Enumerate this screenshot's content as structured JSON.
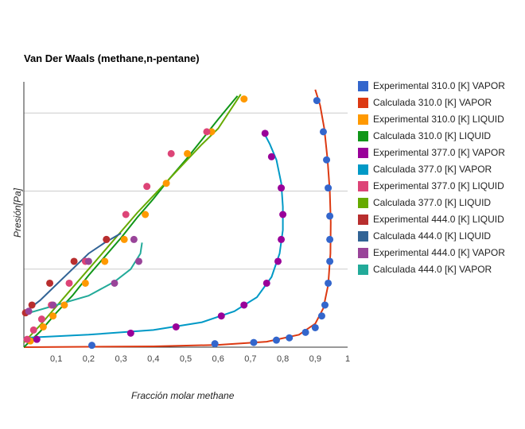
{
  "chart_data": {
    "type": "scatter",
    "title": "Van Der Waals (methane,n-pentane)",
    "xlabel": "Fracción molar methane",
    "ylabel": "Presión[Pa]",
    "xlim": [
      0,
      1
    ],
    "ylim": [
      0,
      17
    ],
    "x_ticks": [
      {
        "v": 0.1,
        "label": "0,1"
      },
      {
        "v": 0.2,
        "label": "0,2"
      },
      {
        "v": 0.3,
        "label": "0,3"
      },
      {
        "v": 0.4,
        "label": "0,4"
      },
      {
        "v": 0.5,
        "label": "0,5"
      },
      {
        "v": 0.6,
        "label": "0,6"
      },
      {
        "v": 0.7,
        "label": "0,7"
      },
      {
        "v": 0.8,
        "label": "0,8"
      },
      {
        "v": 0.9,
        "label": "0,9"
      },
      {
        "v": 1.0,
        "label": "1"
      }
    ],
    "y_grid": [
      5,
      10,
      15
    ],
    "legend_position": "right",
    "series": [
      {
        "name": "Experimental 310.0 [K] VAPOR",
        "kind": "points",
        "color": "#3366cc",
        "points": [
          [
            0.21,
            0.12
          ],
          [
            0.59,
            0.22
          ],
          [
            0.71,
            0.3
          ],
          [
            0.78,
            0.45
          ],
          [
            0.82,
            0.6
          ],
          [
            0.87,
            0.95
          ],
          [
            0.9,
            1.25
          ],
          [
            0.92,
            2.0
          ],
          [
            0.93,
            2.7
          ],
          [
            0.94,
            4.1
          ],
          [
            0.945,
            5.5
          ],
          [
            0.945,
            6.9
          ],
          [
            0.945,
            8.4
          ],
          [
            0.94,
            10.2
          ],
          [
            0.935,
            12.0
          ],
          [
            0.925,
            13.8
          ],
          [
            0.905,
            15.8
          ]
        ]
      },
      {
        "name": "Calculada 310.0 [K] VAPOR",
        "kind": "line",
        "color": "#dc3912",
        "points": [
          [
            0.0,
            0.0
          ],
          [
            0.4,
            0.05
          ],
          [
            0.6,
            0.15
          ],
          [
            0.75,
            0.35
          ],
          [
            0.85,
            0.8
          ],
          [
            0.9,
            1.5
          ],
          [
            0.925,
            2.5
          ],
          [
            0.94,
            4.0
          ],
          [
            0.947,
            6.0
          ],
          [
            0.948,
            8.0
          ],
          [
            0.945,
            10.0
          ],
          [
            0.938,
            12.0
          ],
          [
            0.928,
            14.0
          ],
          [
            0.915,
            15.5
          ],
          [
            0.9,
            16.5
          ]
        ]
      },
      {
        "name": "Experimental 310.0 [K]  LIQUID",
        "kind": "points",
        "color": "#ff9900",
        "points": [
          [
            0.02,
            0.4
          ],
          [
            0.06,
            1.3
          ],
          [
            0.09,
            2.0
          ],
          [
            0.125,
            2.7
          ],
          [
            0.19,
            4.1
          ],
          [
            0.25,
            5.5
          ],
          [
            0.31,
            6.9
          ],
          [
            0.375,
            8.5
          ],
          [
            0.44,
            10.5
          ],
          [
            0.505,
            12.4
          ],
          [
            0.58,
            13.8
          ],
          [
            0.68,
            15.9
          ]
        ]
      },
      {
        "name": "Calculada 310.0 [K] LIQUID",
        "kind": "line",
        "color": "#109618",
        "points": [
          [
            0.0,
            0.0
          ],
          [
            0.05,
            1.0
          ],
          [
            0.1,
            2.2
          ],
          [
            0.15,
            3.3
          ],
          [
            0.2,
            4.6
          ],
          [
            0.25,
            5.8
          ],
          [
            0.3,
            7.0
          ],
          [
            0.35,
            8.3
          ],
          [
            0.4,
            9.5
          ],
          [
            0.45,
            10.8
          ],
          [
            0.5,
            12.0
          ],
          [
            0.55,
            13.3
          ],
          [
            0.6,
            14.6
          ],
          [
            0.66,
            16.1
          ]
        ]
      },
      {
        "name": "Experimental 377.0 [K] VAPOR",
        "kind": "points",
        "color": "#990099",
        "points": [
          [
            0.04,
            0.5
          ],
          [
            0.33,
            0.9
          ],
          [
            0.47,
            1.3
          ],
          [
            0.61,
            2.0
          ],
          [
            0.68,
            2.7
          ],
          [
            0.75,
            4.1
          ],
          [
            0.785,
            5.5
          ],
          [
            0.795,
            6.9
          ],
          [
            0.8,
            8.5
          ],
          [
            0.795,
            10.2
          ],
          [
            0.765,
            12.2
          ],
          [
            0.745,
            13.7
          ]
        ]
      },
      {
        "name": "Calculada 377.0 [K] VAPOR",
        "kind": "line",
        "color": "#0099c6",
        "points": [
          [
            0.0,
            0.6
          ],
          [
            0.2,
            0.8
          ],
          [
            0.4,
            1.1
          ],
          [
            0.55,
            1.6
          ],
          [
            0.65,
            2.3
          ],
          [
            0.72,
            3.2
          ],
          [
            0.765,
            4.5
          ],
          [
            0.79,
            6.0
          ],
          [
            0.8,
            7.5
          ],
          [
            0.8,
            9.0
          ],
          [
            0.795,
            10.5
          ],
          [
            0.78,
            12.0
          ],
          [
            0.76,
            13.0
          ],
          [
            0.74,
            13.8
          ]
        ]
      },
      {
        "name": "Experimental 377.0 [K]  LIQUID",
        "kind": "points",
        "color": "#dd4477",
        "points": [
          [
            0.01,
            0.5
          ],
          [
            0.03,
            1.1
          ],
          [
            0.055,
            1.8
          ],
          [
            0.085,
            2.7
          ],
          [
            0.14,
            4.1
          ],
          [
            0.19,
            5.5
          ],
          [
            0.255,
            6.9
          ],
          [
            0.315,
            8.5
          ],
          [
            0.38,
            10.3
          ],
          [
            0.455,
            12.4
          ],
          [
            0.565,
            13.8
          ]
        ]
      },
      {
        "name": "Calculada 377.0 [K] LIQUID",
        "kind": "line",
        "color": "#66aa00",
        "points": [
          [
            0.0,
            0.3
          ],
          [
            0.05,
            1.4
          ],
          [
            0.1,
            2.6
          ],
          [
            0.15,
            3.8
          ],
          [
            0.2,
            5.0
          ],
          [
            0.25,
            6.2
          ],
          [
            0.3,
            7.4
          ],
          [
            0.35,
            8.6
          ],
          [
            0.4,
            9.7
          ],
          [
            0.45,
            10.8
          ],
          [
            0.5,
            11.9
          ],
          [
            0.55,
            13.0
          ],
          [
            0.6,
            14.0
          ],
          [
            0.67,
            16.2
          ]
        ]
      },
      {
        "name": "Experimental 444.0 [K]  LIQUID",
        "kind": "points",
        "color": "#b82e2e",
        "points": [
          [
            0.005,
            2.2
          ],
          [
            0.025,
            2.7
          ],
          [
            0.08,
            4.1
          ],
          [
            0.155,
            5.5
          ],
          [
            0.255,
            6.9
          ]
        ]
      },
      {
        "name": "Calculada 444.0 [K] LIQUID",
        "kind": "line",
        "color": "#316395",
        "points": [
          [
            0.0,
            2.2
          ],
          [
            0.05,
            3.0
          ],
          [
            0.1,
            4.0
          ],
          [
            0.15,
            5.0
          ],
          [
            0.2,
            6.0
          ],
          [
            0.25,
            6.7
          ],
          [
            0.3,
            7.3
          ]
        ]
      },
      {
        "name": "Experimental 444.0 [K] VAPOR",
        "kind": "points",
        "color": "#994499",
        "points": [
          [
            0.015,
            2.3
          ],
          [
            0.09,
            2.7
          ],
          [
            0.2,
            5.5
          ],
          [
            0.28,
            4.1
          ],
          [
            0.34,
            6.9
          ],
          [
            0.355,
            5.5
          ]
        ]
      },
      {
        "name": "Calculada 444.0 [K] VAPOR",
        "kind": "line",
        "color": "#22aa99",
        "points": [
          [
            0.0,
            2.1
          ],
          [
            0.1,
            2.7
          ],
          [
            0.2,
            3.3
          ],
          [
            0.28,
            4.2
          ],
          [
            0.33,
            5.0
          ],
          [
            0.36,
            6.0
          ],
          [
            0.365,
            6.7
          ]
        ]
      }
    ]
  }
}
